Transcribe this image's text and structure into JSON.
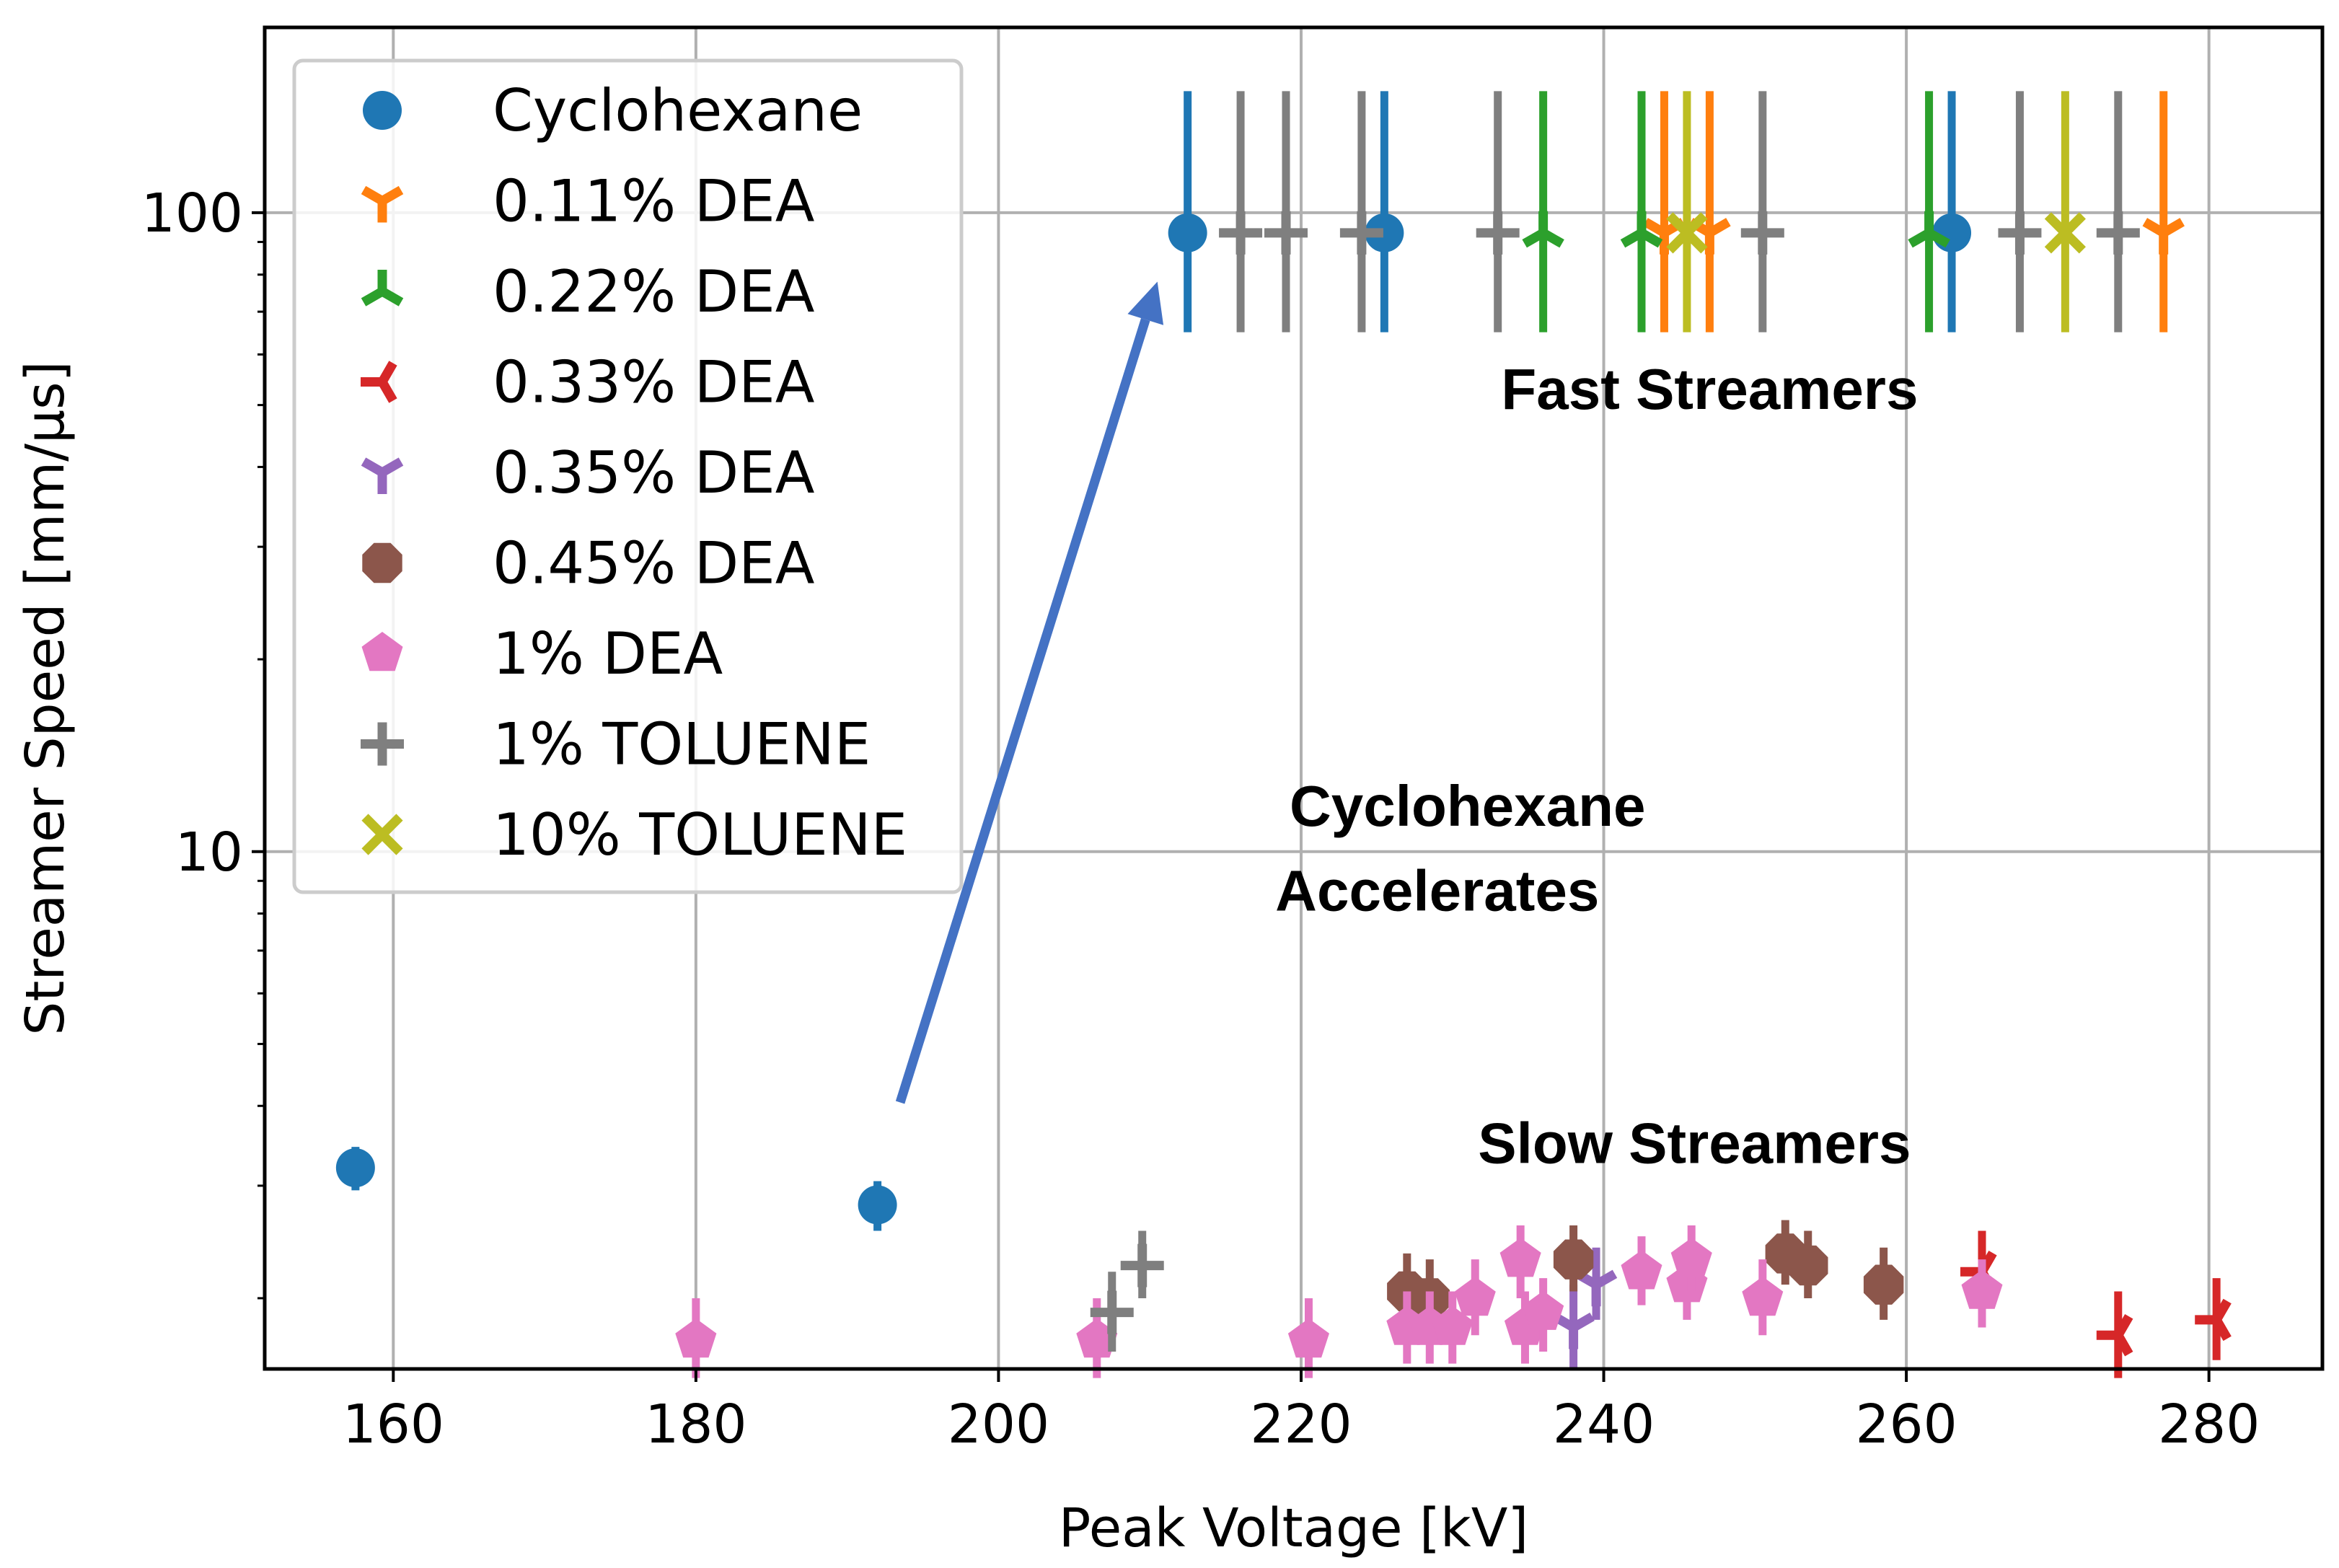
{
  "chart_data": {
    "type": "scatter",
    "xlabel": "Peak Voltage [kV]",
    "ylabel": "Streamer Speed [mm/µs]",
    "xlim": [
      151.5,
      287.5
    ],
    "ylim": [
      1.55,
      195
    ],
    "yscale": "log",
    "x_ticks": [
      160,
      180,
      200,
      220,
      240,
      260,
      280
    ],
    "y_ticks": [
      10,
      100
    ],
    "grid": true,
    "legend_position": "top-left",
    "series": [
      {
        "name": "Cyclohexane",
        "marker": "circle",
        "color": "#1f77b4",
        "points": [
          {
            "x": 157.5,
            "y": 3.2,
            "ylow": 2.95,
            "yhigh": 3.45
          },
          {
            "x": 192,
            "y": 2.8,
            "ylow": 2.55,
            "yhigh": 3.05
          },
          {
            "x": 212.5,
            "y": 93,
            "ylow": 65,
            "yhigh": 155
          },
          {
            "x": 225.5,
            "y": 93,
            "ylow": 65,
            "yhigh": 155
          },
          {
            "x": 263,
            "y": 93,
            "ylow": 65,
            "yhigh": 155
          }
        ]
      },
      {
        "name": "0.11% DEA",
        "marker": "tri_down",
        "color": "#ff7f0e",
        "points": [
          {
            "x": 244,
            "y": 93,
            "ylow": 65,
            "yhigh": 155
          },
          {
            "x": 247,
            "y": 93,
            "ylow": 65,
            "yhigh": 155
          },
          {
            "x": 277,
            "y": 93,
            "ylow": 65,
            "yhigh": 155
          }
        ]
      },
      {
        "name": "0.22% DEA",
        "marker": "tri_up",
        "color": "#2ca02c",
        "points": [
          {
            "x": 236,
            "y": 93,
            "ylow": 65,
            "yhigh": 155
          },
          {
            "x": 242.5,
            "y": 93,
            "ylow": 65,
            "yhigh": 155
          },
          {
            "x": 261.5,
            "y": 93,
            "ylow": 65,
            "yhigh": 155
          }
        ]
      },
      {
        "name": "0.33% DEA",
        "marker": "tri_left",
        "color": "#d62728",
        "points": [
          {
            "x": 265,
            "y": 2.2,
            "ylow": 1.95,
            "yhigh": 2.55
          },
          {
            "x": 274,
            "y": 1.75,
            "ylow": 1.5,
            "yhigh": 2.05
          },
          {
            "x": 280.5,
            "y": 1.85,
            "ylow": 1.6,
            "yhigh": 2.15
          }
        ]
      },
      {
        "name": "0.35% DEA",
        "marker": "tri_right",
        "color": "#9467bd",
        "points": [
          {
            "x": 238,
            "y": 1.8,
            "ylow": 1.55,
            "yhigh": 2.1
          },
          {
            "x": 239.5,
            "y": 2.1,
            "ylow": 1.85,
            "yhigh": 2.4
          }
        ]
      },
      {
        "name": "0.45% DEA",
        "marker": "octagon",
        "color": "#8c564b",
        "points": [
          {
            "x": 227,
            "y": 2.05,
            "ylow": 1.8,
            "yhigh": 2.35
          },
          {
            "x": 228.5,
            "y": 2.0,
            "ylow": 1.75,
            "yhigh": 2.3
          },
          {
            "x": 238,
            "y": 2.3,
            "ylow": 2.05,
            "yhigh": 2.6
          },
          {
            "x": 252,
            "y": 2.35,
            "ylow": 2.1,
            "yhigh": 2.65
          },
          {
            "x": 253.5,
            "y": 2.25,
            "ylow": 2.0,
            "yhigh": 2.55
          },
          {
            "x": 258.5,
            "y": 2.1,
            "ylow": 1.85,
            "yhigh": 2.4
          }
        ]
      },
      {
        "name": "1% DEA",
        "marker": "pentagon",
        "color": "#e377c2",
        "points": [
          {
            "x": 180,
            "y": 1.72,
            "ylow": 1.5,
            "yhigh": 2.0
          },
          {
            "x": 206.5,
            "y": 1.72,
            "ylow": 1.5,
            "yhigh": 2.0
          },
          {
            "x": 220.5,
            "y": 1.72,
            "ylow": 1.5,
            "yhigh": 2.0
          },
          {
            "x": 227,
            "y": 1.8,
            "ylow": 1.58,
            "yhigh": 2.05
          },
          {
            "x": 228.5,
            "y": 1.8,
            "ylow": 1.58,
            "yhigh": 2.05
          },
          {
            "x": 230,
            "y": 1.8,
            "ylow": 1.58,
            "yhigh": 2.05
          },
          {
            "x": 231.5,
            "y": 2.0,
            "ylow": 1.75,
            "yhigh": 2.3
          },
          {
            "x": 234.5,
            "y": 2.3,
            "ylow": 2.0,
            "yhigh": 2.6
          },
          {
            "x": 234.8,
            "y": 1.8,
            "ylow": 1.58,
            "yhigh": 2.05
          },
          {
            "x": 236,
            "y": 1.9,
            "ylow": 1.65,
            "yhigh": 2.15
          },
          {
            "x": 242.5,
            "y": 2.2,
            "ylow": 1.95,
            "yhigh": 2.5
          },
          {
            "x": 245.5,
            "y": 2.1,
            "ylow": 1.85,
            "yhigh": 2.4
          },
          {
            "x": 245.8,
            "y": 2.3,
            "ylow": 2.05,
            "yhigh": 2.6
          },
          {
            "x": 250.5,
            "y": 2.0,
            "ylow": 1.75,
            "yhigh": 2.3
          },
          {
            "x": 265,
            "y": 2.05,
            "ylow": 1.8,
            "yhigh": 2.3
          }
        ]
      },
      {
        "name": "1% TOLUENE",
        "marker": "plus",
        "color": "#7f7f7f",
        "points": [
          {
            "x": 207.5,
            "y": 1.9,
            "ylow": 1.65,
            "yhigh": 2.2
          },
          {
            "x": 209.5,
            "y": 2.25,
            "ylow": 2.0,
            "yhigh": 2.55
          },
          {
            "x": 216,
            "y": 93,
            "ylow": 65,
            "yhigh": 155
          },
          {
            "x": 219,
            "y": 93,
            "ylow": 65,
            "yhigh": 155
          },
          {
            "x": 224,
            "y": 93,
            "ylow": 65,
            "yhigh": 155
          },
          {
            "x": 233,
            "y": 93,
            "ylow": 65,
            "yhigh": 155
          },
          {
            "x": 250.5,
            "y": 93,
            "ylow": 65,
            "yhigh": 155
          },
          {
            "x": 267.5,
            "y": 93,
            "ylow": 65,
            "yhigh": 155
          },
          {
            "x": 274,
            "y": 93,
            "ylow": 65,
            "yhigh": 155
          }
        ]
      },
      {
        "name": "10% TOLUENE",
        "marker": "x",
        "color": "#bcbd22",
        "points": [
          {
            "x": 245.5,
            "y": 93,
            "ylow": 65,
            "yhigh": 155
          },
          {
            "x": 270.5,
            "y": 93,
            "ylow": 65,
            "yhigh": 155
          }
        ]
      }
    ],
    "annotations": [
      {
        "text": "Fast Streamers",
        "x": 247,
        "y": 53
      },
      {
        "text": "Slow Streamers",
        "x": 246,
        "y": 3.5
      },
      {
        "text": "Cyclohexane",
        "x": 231,
        "y": 11.8
      },
      {
        "text": "Accelerates",
        "x": 229,
        "y": 8.7
      }
    ],
    "arrow": {
      "from": [
        193.5,
        4.05
      ],
      "to": [
        210.5,
        78
      ]
    }
  }
}
